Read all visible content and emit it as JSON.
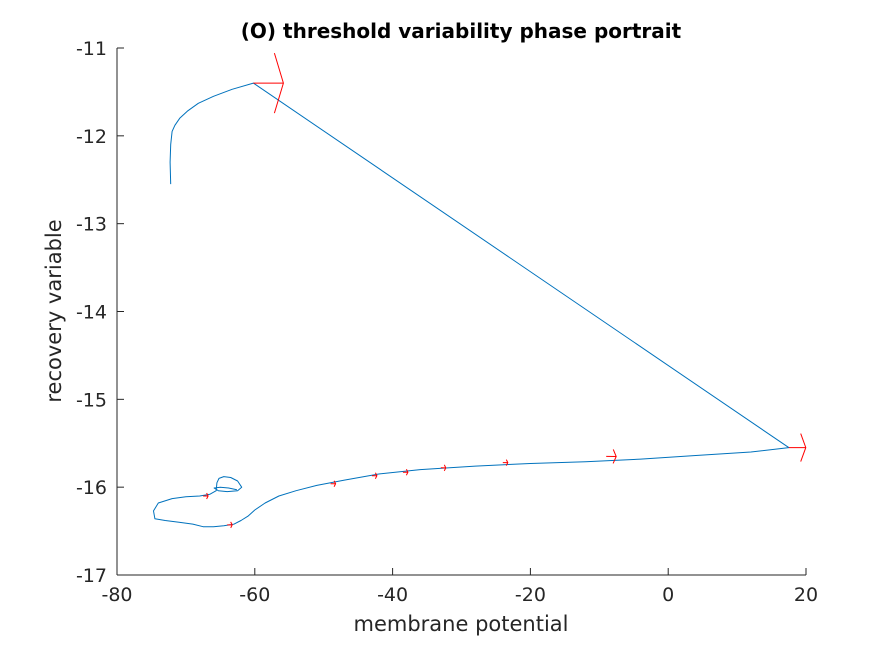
{
  "chart_data": {
    "type": "line",
    "title": "(O) threshold variability phase portrait",
    "xlabel": "membrane potential",
    "ylabel": "recovery variable",
    "xlim": [
      -80,
      20
    ],
    "ylim": [
      -17,
      -11
    ],
    "xticks": [
      -80,
      -60,
      -40,
      -20,
      0,
      20
    ],
    "xtick_labels": [
      "-80",
      "-60",
      "-40",
      "-20",
      "0",
      "20"
    ],
    "yticks": [
      -17,
      -16,
      -15,
      -14,
      -13,
      -12,
      -11
    ],
    "ytick_labels": [
      "-17",
      "-16",
      "-15",
      "-14",
      "-13",
      "-12",
      "-11"
    ],
    "grid": false,
    "box": "axes lines left and bottom",
    "series": [
      {
        "color": "#0072BD",
        "x": [
          -72.2,
          -72.3,
          -72.2,
          -72.0,
          -71.6,
          -70.9,
          -69.8,
          -68.2,
          -66.0,
          -63.3,
          -60.2,
          17.5,
          12.0,
          4.0,
          -4.0,
          -12.0,
          -20.0,
          -28.0,
          -36.0,
          -42.0,
          -47.0,
          -51.0,
          -54.0,
          -56.5,
          -58.5,
          -60.0,
          -61.0,
          -62.0,
          -63.0,
          -64.5,
          -66.0,
          -67.5,
          -69.0,
          -71.0,
          -73.0,
          -74.5,
          -74.7,
          -74.0,
          -72.0,
          -70.0,
          -68.0,
          -66.5,
          -65.6,
          -65.5,
          -65.2,
          -64.5,
          -63.5,
          -62.5,
          -61.9,
          -62.5,
          -64.0,
          -65.3,
          -65.9,
          -65.0,
          -63.8,
          -62.6
        ],
        "y": [
          -12.55,
          -12.3,
          -12.1,
          -11.95,
          -11.88,
          -11.8,
          -11.72,
          -11.63,
          -11.55,
          -11.47,
          -11.4,
          -15.55,
          -15.6,
          -15.64,
          -15.68,
          -15.71,
          -15.73,
          -15.76,
          -15.8,
          -15.85,
          -15.92,
          -15.98,
          -16.04,
          -16.1,
          -16.18,
          -16.26,
          -16.33,
          -16.38,
          -16.42,
          -16.44,
          -16.45,
          -16.45,
          -16.42,
          -16.4,
          -16.38,
          -16.36,
          -16.27,
          -16.18,
          -16.13,
          -16.11,
          -16.1,
          -16.08,
          -16.04,
          -15.95,
          -15.9,
          -15.88,
          -15.89,
          -15.93,
          -16.0,
          -16.04,
          -16.05,
          -16.04,
          -16.01,
          -16.0,
          -16.01,
          -16.03
        ]
      }
    ],
    "arrows": [
      {
        "color": "#FF0000",
        "x": -60.2,
        "y": -11.4,
        "dx": 1,
        "dy": 0,
        "size": "large"
      },
      {
        "color": "#FF0000",
        "x": 17.5,
        "y": -15.55,
        "dx": 1,
        "dy": 0,
        "size": "medium"
      },
      {
        "color": "#FF0000",
        "x": -9.0,
        "y": -15.65,
        "dx": 1,
        "dy": -0.01,
        "size": "small"
      },
      {
        "color": "#FF0000",
        "x": -24.0,
        "y": -15.72,
        "dx": 1,
        "dy": -0.01,
        "size": "tiny"
      },
      {
        "color": "#FF0000",
        "x": -33.0,
        "y": -15.78,
        "dx": 1,
        "dy": -0.01,
        "size": "tiny"
      },
      {
        "color": "#FF0000",
        "x": -38.5,
        "y": -15.83,
        "dx": 1,
        "dy": -0.01,
        "size": "tiny"
      },
      {
        "color": "#FF0000",
        "x": -43.0,
        "y": -15.87,
        "dx": 1,
        "dy": -0.01,
        "size": "tiny"
      },
      {
        "color": "#FF0000",
        "x": -49.0,
        "y": -15.96,
        "dx": 1,
        "dy": -0.01,
        "size": "tiny"
      },
      {
        "color": "#FF0000",
        "x": -64.0,
        "y": -16.43,
        "dx": 1,
        "dy": 0.01,
        "size": "tiny"
      },
      {
        "color": "#FF0000",
        "x": -67.5,
        "y": -16.1,
        "dx": 1,
        "dy": 0,
        "size": "tiny"
      }
    ]
  }
}
